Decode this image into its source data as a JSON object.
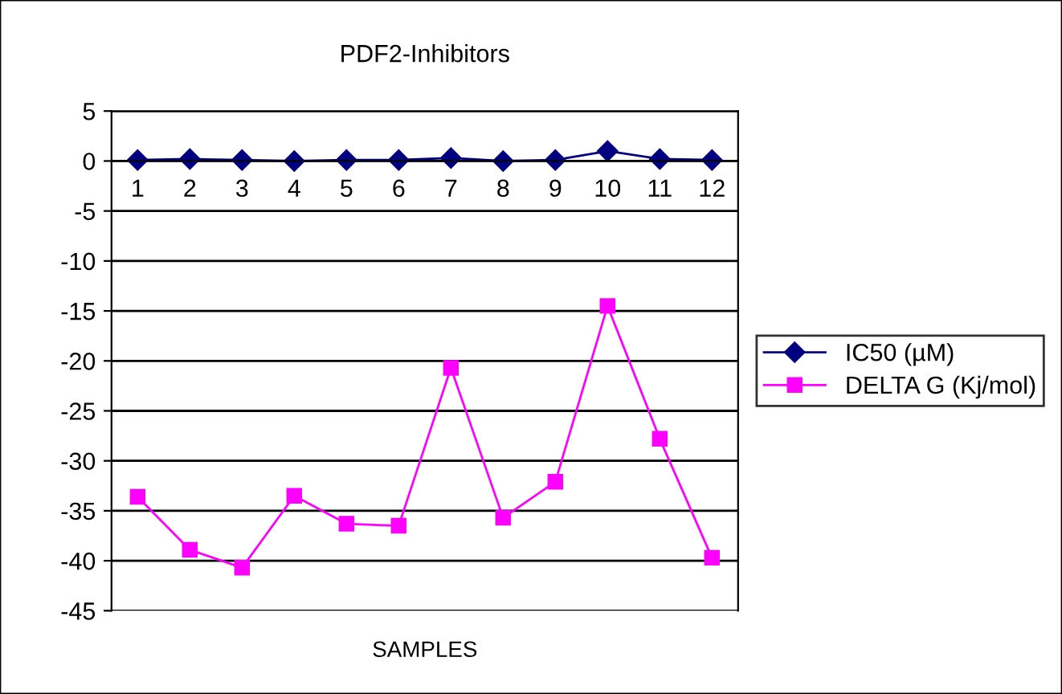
{
  "chart_data": {
    "type": "line",
    "title": "PDF2-Inhibitors",
    "xlabel": "SAMPLES",
    "categories": [
      "1",
      "2",
      "3",
      "4",
      "5",
      "6",
      "7",
      "8",
      "9",
      "10",
      "11",
      "12"
    ],
    "series": [
      {
        "name": "IC50 (µM)",
        "color": "#000080",
        "marker": "diamond",
        "values": [
          0.1,
          0.2,
          0.1,
          0,
          0.1,
          0.1,
          0.3,
          0,
          0.1,
          1,
          0.2,
          0.1
        ]
      },
      {
        "name": "DELTA G (Kj/mol)",
        "color": "#ff00ff",
        "marker": "square",
        "values": [
          -33.6,
          -38.9,
          -40.7,
          -33.5,
          -36.3,
          -36.5,
          -20.7,
          -35.7,
          -32.1,
          -14.5,
          -27.8,
          -39.7
        ]
      }
    ],
    "ylim": [
      -45,
      5
    ],
    "yticks": [
      -45,
      -40,
      -35,
      -30,
      -25,
      -20,
      -15,
      -10,
      -5,
      0,
      5
    ],
    "grid": "y",
    "legend": "right",
    "line_style": "solid"
  }
}
